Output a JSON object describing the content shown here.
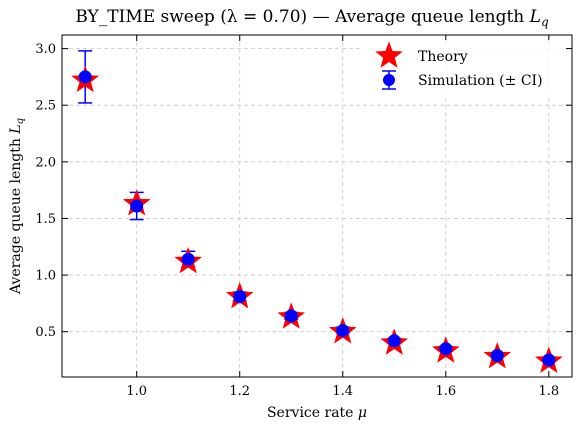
{
  "chart_data": {
    "type": "scatter",
    "title_main": "BY_TIME sweep (λ = 0.70) — Average queue length ",
    "title_var": "L",
    "title_sub": "q",
    "xlabel_main": "Service rate ",
    "xlabel_var": "μ",
    "ylabel_main": "Average queue length ",
    "ylabel_var": "L",
    "ylabel_sub": "q",
    "xlim": [
      0.855,
      1.845
    ],
    "ylim": [
      0.1,
      3.12
    ],
    "xticks": [
      1.0,
      1.2,
      1.4,
      1.6,
      1.8
    ],
    "xtick_labels": [
      "1.0",
      "1.2",
      "1.4",
      "1.6",
      "1.8"
    ],
    "yticks": [
      0.5,
      1.0,
      1.5,
      2.0,
      2.5,
      3.0
    ],
    "ytick_labels": [
      "0.5",
      "1.0",
      "1.5",
      "2.0",
      "2.5",
      "3.0"
    ],
    "grid": true,
    "legend_position": "top-right",
    "x": [
      0.9,
      1.0,
      1.1,
      1.2,
      1.3,
      1.4,
      1.5,
      1.6,
      1.7,
      1.8
    ],
    "series": [
      {
        "name": "Theory",
        "marker": "star",
        "color": "#ff0000",
        "values": [
          2.72,
          1.63,
          1.12,
          0.81,
          0.63,
          0.5,
          0.4,
          0.33,
          0.28,
          0.24
        ]
      },
      {
        "name": "Simulation (± CI)",
        "marker": "circle",
        "color": "#0000ff",
        "values": [
          2.75,
          1.61,
          1.14,
          0.81,
          0.64,
          0.51,
          0.42,
          0.35,
          0.29,
          0.25
        ],
        "ci_low": [
          2.52,
          1.49,
          1.07,
          0.77,
          0.61,
          0.49,
          0.4,
          0.33,
          0.28,
          0.24
        ],
        "ci_high": [
          2.98,
          1.73,
          1.21,
          0.85,
          0.67,
          0.54,
          0.44,
          0.37,
          0.3,
          0.26
        ]
      }
    ]
  }
}
